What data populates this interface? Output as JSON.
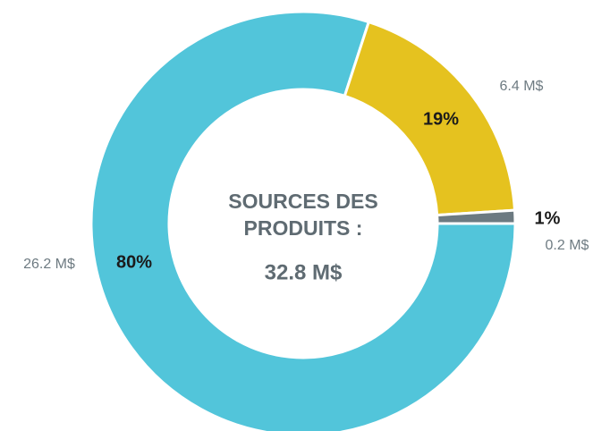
{
  "chart_data": {
    "type": "pie",
    "title": "SOURCES DES PRODUITS :",
    "subtitle": "32.8 M$",
    "values": [
      80,
      19,
      1
    ],
    "value_labels": [
      "80%",
      "19%",
      "1%"
    ],
    "amount_labels": [
      "26.2 M$",
      "6.4 M$",
      "0.2 M$"
    ],
    "colors": [
      "#52c5da",
      "#e5c21f",
      "#6c7a81"
    ]
  }
}
